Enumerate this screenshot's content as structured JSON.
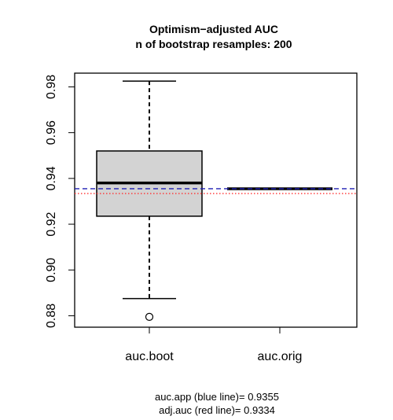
{
  "chart_data": {
    "type": "boxplot",
    "title": "Optimism−adjusted AUC",
    "subtitle": "n of bootstrap resamples: 200",
    "categories": [
      "auc.boot",
      "auc.orig"
    ],
    "boxes": [
      {
        "name": "auc.boot",
        "whisker_low": 0.8875,
        "q1": 0.9235,
        "median": 0.938,
        "q3": 0.952,
        "whisker_high": 0.9825,
        "outliers": [
          0.8795
        ]
      },
      {
        "name": "auc.orig",
        "whisker_low": 0.9355,
        "q1": 0.9355,
        "median": 0.9355,
        "q3": 0.9355,
        "whisker_high": 0.9355,
        "outliers": []
      }
    ],
    "yticks": [
      0.88,
      0.9,
      0.92,
      0.94,
      0.96,
      0.98
    ],
    "ytick_labels": [
      "0.88",
      "0.90",
      "0.92",
      "0.94",
      "0.96",
      "0.98"
    ],
    "ylim": [
      0.875,
      0.986
    ],
    "reference_lines": [
      {
        "value": 0.9355,
        "color": "#1f1fb4",
        "style": "dashed"
      },
      {
        "value": 0.9334,
        "color": "#ff3030",
        "style": "dotted"
      }
    ],
    "box_fill": "#d3d3d3",
    "annotation_lines": [
      "auc.app (blue line)= 0.9355",
      "adj.auc (red line)= 0.9334"
    ]
  }
}
